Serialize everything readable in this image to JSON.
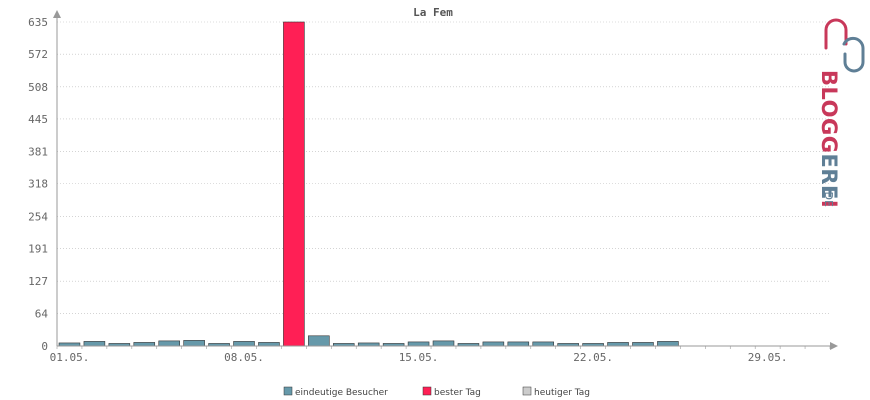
{
  "chart_data": {
    "type": "bar",
    "title": "La Fem",
    "ylim": [
      0,
      635
    ],
    "yticks": [
      "0",
      "64",
      "127",
      "191",
      "254",
      "318",
      "381",
      "445",
      "508",
      "572",
      "635"
    ],
    "xticks": [
      {
        "label": "01.05.",
        "index": 1
      },
      {
        "label": "08.05.",
        "index": 8
      },
      {
        "label": "15.05.",
        "index": 15
      },
      {
        "label": "22.05.",
        "index": 22
      },
      {
        "label": "29.05.",
        "index": 29
      }
    ],
    "days": 31,
    "values": [
      6,
      9,
      5,
      7,
      10,
      11,
      5,
      9,
      7,
      635,
      20,
      5,
      6,
      5,
      8,
      10,
      5,
      8,
      8,
      8,
      5,
      5,
      7,
      7,
      9
    ],
    "best_index": 9,
    "grid": true,
    "legend": [
      {
        "label": "eindeutige Besucher",
        "color": "#6699aa"
      },
      {
        "label": "bester Tag",
        "color": "#ff1f55"
      },
      {
        "label": "heutiger Tag",
        "color": "#cccccc"
      }
    ],
    "legend_position": "bottom"
  },
  "colors": {
    "bar": "#6699aa",
    "best": "#ff1f55",
    "today": "#cccccc",
    "grid": "#bbbbbb",
    "axis": "#999999"
  },
  "logo": {
    "text": "BLOGGEREI",
    "suffix": ".DE",
    "color_main": "#c8385a",
    "color_alt": "#5f7f96"
  }
}
